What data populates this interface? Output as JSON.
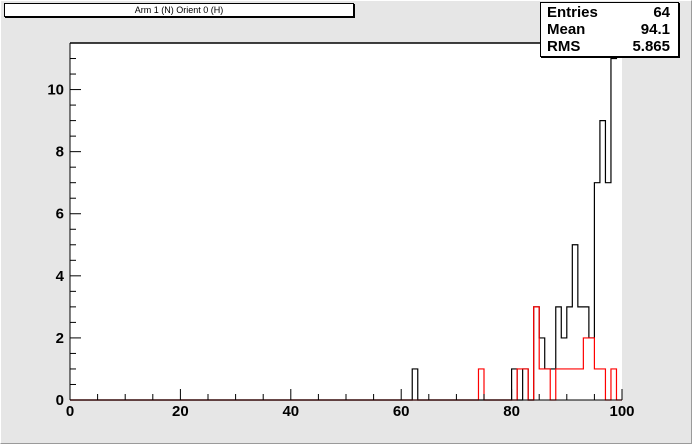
{
  "title": "Arm 1 (N) Orient 0 (H)",
  "stats": [
    {
      "label": "Entries",
      "value": "64"
    },
    {
      "label": "Mean",
      "value": "94.1"
    },
    {
      "label": "RMS",
      "value": "5.865"
    }
  ],
  "colors": {
    "background": "#e6e6e6",
    "plot_background": "#ffffff",
    "series_black": "#000000",
    "series_red": "#ff0000"
  },
  "chart_data": {
    "type": "histogram",
    "xlim": [
      0,
      100
    ],
    "ylim": [
      0,
      11.5
    ],
    "bin_width": 1,
    "x_ticks": [
      0,
      20,
      40,
      60,
      80,
      100
    ],
    "y_ticks": [
      0,
      2,
      4,
      6,
      8,
      10
    ],
    "series": [
      {
        "color": "#000000",
        "bins": [
          {
            "x": 63,
            "y": 1
          },
          {
            "x": 81,
            "y": 1
          },
          {
            "x": 83,
            "y": 1
          },
          {
            "x": 85,
            "y": 3
          },
          {
            "x": 86,
            "y": 2
          },
          {
            "x": 87,
            "y": 1
          },
          {
            "x": 88,
            "y": 1
          },
          {
            "x": 89,
            "y": 3
          },
          {
            "x": 90,
            "y": 2
          },
          {
            "x": 91,
            "y": 3
          },
          {
            "x": 92,
            "y": 5
          },
          {
            "x": 93,
            "y": 3
          },
          {
            "x": 94,
            "y": 3
          },
          {
            "x": 95,
            "y": 2
          },
          {
            "x": 96,
            "y": 7
          },
          {
            "x": 97,
            "y": 9
          },
          {
            "x": 98,
            "y": 7
          },
          {
            "x": 99,
            "y": 11
          },
          {
            "x": 100,
            "y": 11.5
          }
        ]
      },
      {
        "color": "#ff0000",
        "bins": [
          {
            "x": 75,
            "y": 1
          },
          {
            "x": 82,
            "y": 1
          },
          {
            "x": 83,
            "y": 1
          },
          {
            "x": 85,
            "y": 3
          },
          {
            "x": 86,
            "y": 1
          },
          {
            "x": 87,
            "y": 1
          },
          {
            "x": 89,
            "y": 1
          },
          {
            "x": 90,
            "y": 1
          },
          {
            "x": 91,
            "y": 1
          },
          {
            "x": 92,
            "y": 1
          },
          {
            "x": 93,
            "y": 1
          },
          {
            "x": 94,
            "y": 2
          },
          {
            "x": 95,
            "y": 2
          },
          {
            "x": 96,
            "y": 1
          },
          {
            "x": 97,
            "y": 1
          },
          {
            "x": 99,
            "y": 1
          }
        ]
      }
    ]
  }
}
